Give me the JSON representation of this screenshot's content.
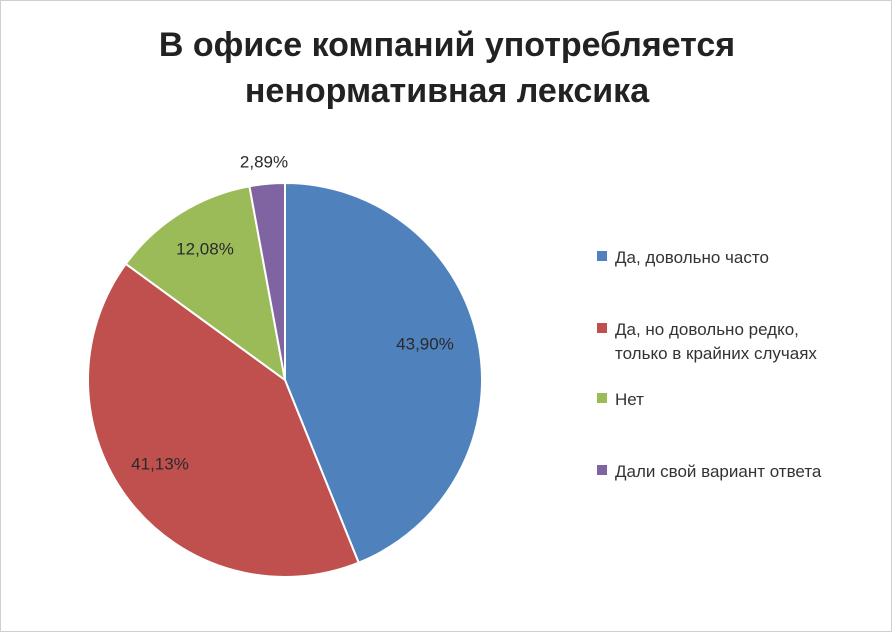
{
  "chart_data": {
    "type": "pie",
    "title_lines": [
      "В офисе компаний употребляется",
      "ненормативная лексика"
    ],
    "series": [
      {
        "name": "Да, довольно часто",
        "value": 43.9,
        "label": "43,90%",
        "color": "#4F81BD"
      },
      {
        "name": "Да, но довольно редко, только в крайних случаях",
        "legend_lines": [
          "Да, но довольно редко,",
          "только в крайних случаях"
        ],
        "value": 41.13,
        "label": "41,13%",
        "color": "#C0504D"
      },
      {
        "name": "Нет",
        "value": 12.08,
        "label": "12,08%",
        "color": "#9BBB59"
      },
      {
        "name": "Дали свой вариант ответа",
        "value": 2.89,
        "label": "2,89%",
        "color": "#8064A2"
      }
    ],
    "legend_position": "right",
    "start": "top",
    "direction": "clockwise"
  }
}
